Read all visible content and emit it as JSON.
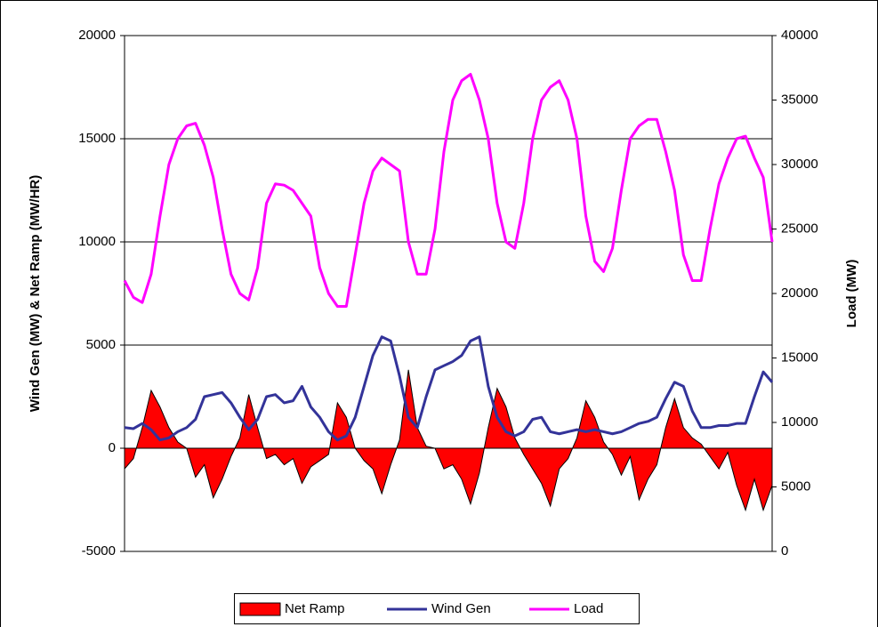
{
  "chart_data": {
    "type": "line",
    "y_label": "Wind Gen (MW) & Net Ramp (MW/HR)",
    "y2_label": "Load (MW)",
    "ylim": [
      -5000,
      20000
    ],
    "yticks": [
      -5000,
      0,
      5000,
      10000,
      15000,
      20000
    ],
    "y2lim": [
      0,
      40000
    ],
    "y2ticks": [
      0,
      5000,
      10000,
      15000,
      20000,
      25000,
      30000,
      35000,
      40000
    ],
    "grid": true,
    "legend": "bottom",
    "series": [
      {
        "name": "Net Ramp",
        "type": "area",
        "color": "#ff0000",
        "values": [
          -1000,
          -500,
          1000,
          2800,
          2000,
          1000,
          300,
          0,
          -1400,
          -800,
          -2400,
          -1500,
          -400,
          500,
          2600,
          1000,
          -500,
          -300,
          -800,
          -500,
          -1700,
          -900,
          -600,
          -300,
          2200,
          1500,
          0,
          -600,
          -1000,
          -2200,
          -800,
          400,
          3800,
          1000,
          100,
          0,
          -1000,
          -800,
          -1500,
          -2700,
          -1200,
          1000,
          2900,
          2000,
          500,
          -300,
          -1000,
          -1700,
          -2800,
          -1000,
          -500,
          500,
          2300,
          1500,
          300,
          -300,
          -1300,
          -400,
          -2500,
          -1500,
          -800,
          1000,
          2400,
          1000,
          500,
          200,
          -400,
          -1000,
          -200,
          -1800,
          -3000,
          -1500,
          -3000,
          -1800
        ]
      },
      {
        "name": "Wind Gen",
        "type": "line",
        "color": "#333399",
        "values": [
          1000,
          950,
          1200,
          900,
          400,
          500,
          800,
          1000,
          1400,
          2500,
          2600,
          2700,
          2200,
          1500,
          900,
          1400,
          2500,
          2600,
          2200,
          2300,
          3000,
          2000,
          1500,
          800,
          400,
          600,
          1500,
          3000,
          4500,
          5400,
          5200,
          3500,
          1500,
          1000,
          2500,
          3800,
          4000,
          4200,
          4500,
          5200,
          5400,
          3000,
          1500,
          800,
          600,
          800,
          1400,
          1500,
          800,
          700,
          800,
          900,
          800,
          900,
          800,
          700,
          800,
          1000,
          1200,
          1300,
          1500,
          2400,
          3200,
          3000,
          1800,
          1000,
          1000,
          1100,
          1100,
          1200,
          1200,
          2500,
          3700,
          3200
        ]
      },
      {
        "name": "Load",
        "type": "line",
        "axis": "y2",
        "color": "#ff00ff",
        "values": [
          21000,
          19700,
          19300,
          21500,
          26000,
          30000,
          32000,
          33000,
          33200,
          31500,
          29000,
          25000,
          21500,
          20000,
          19500,
          22000,
          27000,
          28500,
          28400,
          28000,
          27000,
          26000,
          22000,
          20000,
          19000,
          19000,
          23000,
          27000,
          29500,
          30500,
          30000,
          29500,
          24000,
          21500,
          21500,
          25000,
          31000,
          35000,
          36500,
          37000,
          35000,
          32000,
          27000,
          24000,
          23500,
          27000,
          32000,
          35000,
          36000,
          36500,
          35000,
          32000,
          26000,
          22500,
          21700,
          23500,
          28000,
          32000,
          33000,
          33500,
          33500,
          31000,
          28000,
          23000,
          21000,
          21000,
          25000,
          28500,
          30500,
          32000,
          32200,
          30500,
          29000,
          24000
        ]
      }
    ]
  }
}
